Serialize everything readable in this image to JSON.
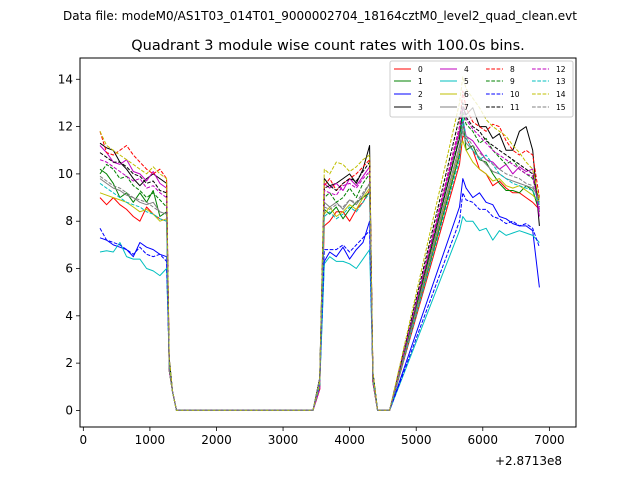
{
  "chart_data": {
    "type": "line",
    "suptitle": "Data file: modeM0/AS1T03_014T01_9000002704_18164cztM0_level2_quad_clean.evt",
    "title": "Quadrant 3 module wise count rates with 100.0s bins.",
    "xlabel": "",
    "ylabel": "",
    "offset_label": "+2.8713e8",
    "xlim": [
      -50,
      7400
    ],
    "ylim": [
      -0.7,
      14.9
    ],
    "xticks": [
      0,
      1000,
      2000,
      3000,
      4000,
      5000,
      6000,
      7000
    ],
    "yticks": [
      0,
      2,
      4,
      6,
      8,
      10,
      12,
      14
    ],
    "xtick_labels": [
      "0",
      "1000",
      "2000",
      "3000",
      "4000",
      "5000",
      "6000",
      "7000"
    ],
    "ytick_labels": [
      "0",
      "2",
      "4",
      "6",
      "8",
      "10",
      "12",
      "14"
    ],
    "grid": false,
    "legend": {
      "placement": "top-right",
      "columns": 4
    },
    "x": [
      250,
      350,
      450,
      550,
      650,
      750,
      850,
      950,
      1050,
      1150,
      1250,
      1290,
      1340,
      1400,
      1450,
      3450,
      3550,
      3620,
      3700,
      3800,
      3900,
      4000,
      4100,
      4200,
      4300,
      4350,
      4420,
      4480,
      4550,
      4600,
      5650,
      5700,
      5750,
      5850,
      5950,
      6050,
      6150,
      6250,
      6350,
      6450,
      6550,
      6650,
      6750,
      6850,
      6950,
      7050
    ],
    "series": [
      {
        "name": "0",
        "color": "#ff0000",
        "dash": "solid",
        "seg": [
          [
            9.0,
            8.7,
            9.0,
            8.7,
            8.5,
            8.2,
            8.0,
            8.6,
            8.3,
            8.1,
            8.0
          ],
          [
            7.8,
            8.0,
            8.4,
            8.4,
            8.0,
            8.5,
            8.8,
            9.3
          ],
          [
            10.4,
            11.6,
            11.5,
            11.0,
            10.2,
            10.0,
            9.5,
            9.7,
            9.4,
            9.2,
            9.2,
            9.0,
            8.8,
            8.5
          ]
        ]
      },
      {
        "name": "1",
        "color": "#008000",
        "dash": "solid",
        "seg": [
          [
            10.2,
            10.0,
            9.6,
            9.0,
            9.2,
            8.8,
            9.2,
            8.8,
            9.3,
            8.2,
            8.4
          ],
          [
            8.5,
            8.3,
            8.6,
            8.1,
            8.5,
            8.8,
            9.0,
            9.2
          ],
          [
            10.8,
            12.4,
            11.0,
            11.2,
            10.6,
            10.5,
            10.0,
            9.6,
            9.3,
            9.3,
            9.2,
            9.5,
            9.3,
            8.4
          ]
        ]
      },
      {
        "name": "2",
        "color": "#0000ff",
        "dash": "solid",
        "seg": [
          [
            7.3,
            7.2,
            7.0,
            6.9,
            6.8,
            6.5,
            7.1,
            6.9,
            6.8,
            6.6,
            6.5
          ],
          [
            6.3,
            6.7,
            6.5,
            6.9,
            6.4,
            6.8,
            7.1,
            8.0
          ],
          [
            8.6,
            9.8,
            9.4,
            9.0,
            9.2,
            8.8,
            8.7,
            8.2,
            8.1,
            7.9,
            7.8,
            7.8,
            7.6,
            5.2
          ]
        ]
      },
      {
        "name": "3",
        "color": "#000000",
        "dash": "solid",
        "seg": [
          [
            11.3,
            11.1,
            11.0,
            10.5,
            10.2,
            9.8,
            9.5,
            9.8,
            10.0,
            9.8,
            9.6
          ],
          [
            9.8,
            9.5,
            9.6,
            9.8,
            10.0,
            9.6,
            10.2,
            11.2
          ],
          [
            11.5,
            12.8,
            12.5,
            12.8,
            12.0,
            12.0,
            11.5,
            11.7,
            11.0,
            11.0,
            11.8,
            12.0,
            11.0,
            7.8
          ]
        ]
      },
      {
        "name": "4",
        "color": "#bf00bf",
        "dash": "solid",
        "seg": [
          [
            11.2,
            10.9,
            10.5,
            10.4,
            10.6,
            10.1,
            10.0,
            9.7,
            10.1,
            9.6,
            9.4
          ],
          [
            9.6,
            9.4,
            9.6,
            9.3,
            9.8,
            9.5,
            9.9,
            10.3
          ],
          [
            11.8,
            12.3,
            11.6,
            11.4,
            11.0,
            10.6,
            10.5,
            10.2,
            10.4,
            10.0,
            10.3,
            10.1,
            10.2,
            8.2
          ]
        ]
      },
      {
        "name": "5",
        "color": "#00bfbf",
        "dash": "solid",
        "seg": [
          [
            6.7,
            6.75,
            6.7,
            7.1,
            6.5,
            6.4,
            6.4,
            6.0,
            5.9,
            5.7,
            6.0
          ],
          [
            6.2,
            6.5,
            6.3,
            6.3,
            6.2,
            6.0,
            6.4,
            6.8
          ],
          [
            7.6,
            8.2,
            8.0,
            8.0,
            7.6,
            7.7,
            7.2,
            7.6,
            7.4,
            7.5,
            7.6,
            7.5,
            7.4,
            7.1
          ]
        ]
      },
      {
        "name": "6",
        "color": "#bfbf00",
        "dash": "solid",
        "seg": [
          [
            9.2,
            9.1,
            9.0,
            8.9,
            8.8,
            8.6,
            8.4,
            8.5,
            8.3,
            8.0,
            8.1
          ],
          [
            8.3,
            8.6,
            8.2,
            8.4,
            8.7,
            8.5,
            9.0,
            9.4
          ],
          [
            11.0,
            11.4,
            11.0,
            10.5,
            10.2,
            10.0,
            9.7,
            9.8,
            9.5,
            9.4,
            9.5,
            9.3,
            9.1,
            8.8
          ]
        ]
      },
      {
        "name": "7",
        "color": "#808080",
        "dash": "solid",
        "seg": [
          [
            9.8,
            9.6,
            9.4,
            9.3,
            9.1,
            9.0,
            8.8,
            8.7,
            8.8,
            8.4,
            8.3
          ],
          [
            8.8,
            8.6,
            8.8,
            8.5,
            8.9,
            8.7,
            9.1,
            9.6
          ],
          [
            11.2,
            11.8,
            11.3,
            11.0,
            10.7,
            10.4,
            10.1,
            10.0,
            9.8,
            9.7,
            9.6,
            9.5,
            9.4,
            9.0
          ]
        ]
      },
      {
        "name": "8",
        "color": "#ff0000",
        "dash": "dashed",
        "seg": [
          [
            11.8,
            10.9,
            10.8,
            11.0,
            11.2,
            10.8,
            10.5,
            10.2,
            10.0,
            10.2,
            9.8
          ],
          [
            9.5,
            9.8,
            9.3,
            9.6,
            9.8,
            10.0,
            10.3,
            10.6
          ],
          [
            12.0,
            13.5,
            12.8,
            12.2,
            12.0,
            11.8,
            12.1,
            12.0,
            11.4,
            11.0,
            10.8,
            11.0,
            10.8,
            9.0
          ]
        ]
      },
      {
        "name": "9",
        "color": "#008000",
        "dash": "dashed",
        "seg": [
          [
            10.0,
            10.4,
            10.2,
            9.8,
            9.9,
            9.5,
            9.3,
            9.0,
            9.2,
            8.9,
            8.6
          ],
          [
            9.0,
            9.2,
            8.8,
            9.0,
            9.4,
            9.0,
            9.6,
            10.0
          ],
          [
            11.6,
            12.6,
            12.1,
            11.8,
            11.3,
            11.5,
            11.0,
            10.7,
            10.4,
            10.6,
            10.2,
            10.0,
            9.8,
            8.8
          ]
        ]
      },
      {
        "name": "10",
        "color": "#0000ff",
        "dash": "dashed",
        "seg": [
          [
            7.7,
            7.2,
            7.1,
            7.0,
            6.8,
            6.6,
            6.9,
            6.6,
            6.5,
            6.6,
            6.3
          ],
          [
            6.8,
            6.8,
            6.8,
            7.0,
            6.7,
            7.0,
            7.3,
            7.6
          ],
          [
            8.0,
            9.2,
            8.9,
            8.8,
            8.5,
            8.5,
            8.2,
            8.1,
            7.9,
            8.0,
            7.8,
            7.9,
            7.7,
            6.9
          ]
        ]
      },
      {
        "name": "11",
        "color": "#000000",
        "dash": "dashed",
        "seg": [
          [
            10.9,
            10.7,
            10.5,
            10.5,
            10.3,
            10.0,
            9.9,
            9.6,
            9.7,
            9.3,
            9.2
          ],
          [
            9.4,
            9.5,
            9.3,
            9.6,
            9.8,
            9.7,
            10.1,
            10.5
          ],
          [
            12.4,
            13.0,
            12.4,
            12.0,
            11.8,
            11.4,
            11.2,
            11.0,
            10.8,
            10.6,
            10.4,
            10.2,
            10.0,
            8.6
          ]
        ]
      },
      {
        "name": "12",
        "color": "#bf00bf",
        "dash": "dashed",
        "seg": [
          [
            10.6,
            10.5,
            10.3,
            10.1,
            9.9,
            9.7,
            9.8,
            9.4,
            9.5,
            9.2,
            9.0
          ],
          [
            9.3,
            9.2,
            9.1,
            9.5,
            9.6,
            9.4,
            9.8,
            10.1
          ],
          [
            12.0,
            12.8,
            12.3,
            11.9,
            11.6,
            11.3,
            11.0,
            10.8,
            10.6,
            10.4,
            10.2,
            10.0,
            9.9,
            8.5
          ]
        ]
      },
      {
        "name": "13",
        "color": "#00bfbf",
        "dash": "dashed",
        "seg": [
          [
            9.6,
            9.4,
            9.2,
            9.0,
            8.8,
            8.7,
            8.6,
            8.4,
            8.3,
            8.1,
            8.0
          ],
          [
            8.2,
            8.4,
            8.1,
            8.3,
            8.6,
            8.4,
            8.8,
            9.2
          ],
          [
            10.6,
            12.4,
            11.5,
            11.0,
            10.6,
            10.8,
            10.4,
            10.0,
            9.8,
            9.6,
            9.5,
            9.4,
            9.3,
            8.7
          ]
        ]
      },
      {
        "name": "14",
        "color": "#bfbf00",
        "dash": "dashed",
        "seg": [
          [
            11.8,
            11.2,
            11.0,
            10.8,
            10.6,
            10.4,
            10.2,
            10.0,
            10.3,
            10.0,
            9.8
          ],
          [
            10.2,
            10.0,
            10.5,
            10.4,
            10.1,
            10.3,
            10.6,
            10.8
          ],
          [
            13.0,
            14.1,
            13.6,
            13.2,
            12.8,
            12.3,
            12.0,
            11.8,
            11.6,
            11.2,
            10.9,
            10.5,
            10.2,
            8.9
          ]
        ]
      },
      {
        "name": "15",
        "color": "#808080",
        "dash": "dashed",
        "seg": [
          [
            9.9,
            9.7,
            9.5,
            9.4,
            9.2,
            9.0,
            8.9,
            8.8,
            8.6,
            8.4,
            8.3
          ],
          [
            8.6,
            8.5,
            8.7,
            8.6,
            8.9,
            8.8,
            9.2,
            9.6
          ],
          [
            11.0,
            12.0,
            11.6,
            11.2,
            10.9,
            10.6,
            10.4,
            10.2,
            10.0,
            9.9,
            9.8,
            9.6,
            9.5,
            8.8
          ]
        ]
      }
    ]
  }
}
